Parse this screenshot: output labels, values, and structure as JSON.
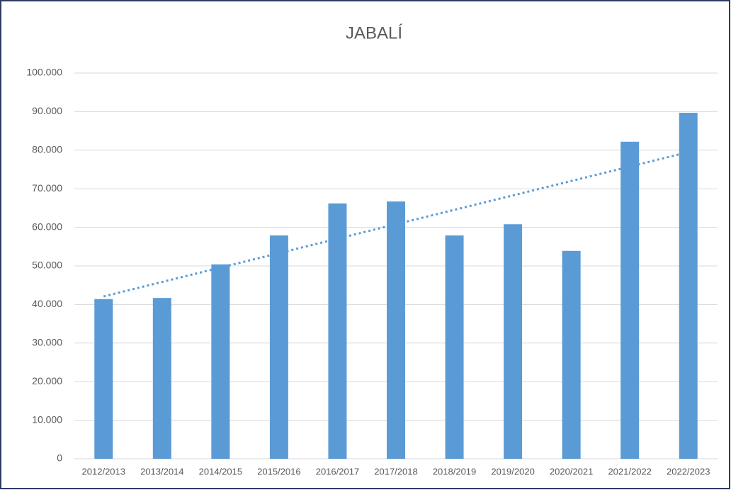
{
  "chart_data": {
    "type": "bar",
    "title": "JABALÍ",
    "categories": [
      "2012/2013",
      "2013/2014",
      "2014/2015",
      "2015/2016",
      "2016/2017",
      "2017/2018",
      "2018/2019",
      "2019/2020",
      "2020/2021",
      "2021/2022",
      "2022/2023"
    ],
    "values": [
      41400,
      41700,
      50400,
      57900,
      66200,
      66700,
      57900,
      60800,
      53900,
      82200,
      89700
    ],
    "color": "#5b9bd5",
    "ylim": [
      0,
      100000
    ],
    "yticks": [
      0,
      {
        "value": 10000,
        "label": "10.000"
      },
      {
        "value": 20000,
        "label": "20.000"
      },
      {
        "value": 30000,
        "label": "30.000"
      },
      {
        "value": 40000,
        "label": "40.000"
      },
      {
        "value": 50000,
        "label": "50.000"
      },
      {
        "value": 60000,
        "label": "60.000"
      },
      {
        "value": 70000,
        "label": "70.000"
      },
      {
        "value": 80000,
        "label": "80.000"
      },
      {
        "value": 90000,
        "label": "90.000"
      },
      {
        "value": 100000,
        "label": "100.000"
      }
    ],
    "grid": true,
    "trendline": {
      "type": "linear",
      "style": "dotted",
      "color": "#5b9bd5"
    }
  }
}
